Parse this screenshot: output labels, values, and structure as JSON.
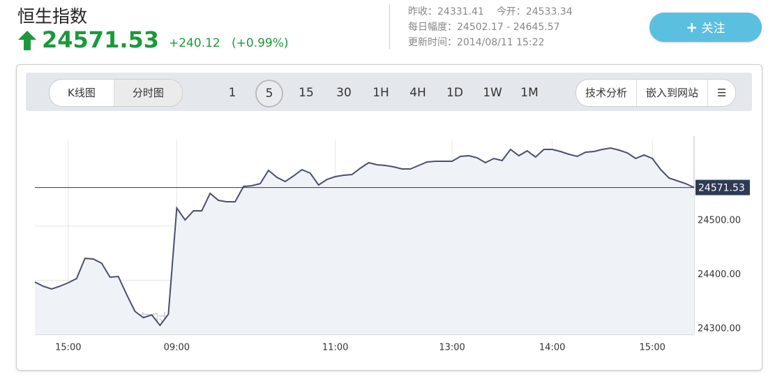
{
  "header": {
    "title": "恒生指数",
    "price": "24571.53",
    "change": "+240.12",
    "change_pct": "(+0.99%)",
    "stats": [
      [
        {
          "label": "昨收：",
          "value": "24331.41"
        },
        {
          "label": "今开：",
          "value": "24533.34"
        }
      ],
      [
        {
          "label": "每日幅度：",
          "value": "24502.17 - 24645.57"
        }
      ],
      [
        {
          "label": "更新时间：",
          "value": "2014/08/11 15:22"
        }
      ]
    ],
    "follow_button": "关注"
  },
  "toolbar": {
    "tabs": [
      "K线图",
      "分时图"
    ],
    "active_tab": 1,
    "intervals": [
      "1",
      "5",
      "15",
      "30",
      "1H",
      "4H",
      "1D",
      "1W",
      "1M"
    ],
    "active_interval": 1,
    "tools": [
      "技术分析",
      "嵌入到网站"
    ]
  },
  "chart_data": {
    "type": "line",
    "watermark": "华尔街见闻 · 实时行情",
    "categories": [
      null,
      null,
      null,
      null,
      "15:00",
      null,
      null,
      null,
      null,
      null,
      null,
      null,
      null,
      null,
      null,
      null,
      null,
      "09:00",
      null,
      null,
      null,
      null,
      null,
      null,
      null,
      null,
      null,
      null,
      null,
      null,
      null,
      null,
      null,
      null,
      null,
      null,
      "11:00",
      null,
      null,
      null,
      null,
      null,
      null,
      null,
      null,
      null,
      null,
      null,
      null,
      null,
      "13:00",
      null,
      null,
      null,
      null,
      null,
      null,
      null,
      null,
      null,
      null,
      null,
      "14:00",
      null,
      null,
      null,
      null,
      null,
      null,
      null,
      null,
      null,
      null,
      null,
      "15:00",
      null,
      null,
      null,
      null,
      null
    ],
    "series": [
      {
        "name": "恒生指数",
        "color": "#4a4e6c",
        "values": [
          24396.8,
          24389.0,
          24383.9,
          24389.0,
          24395.5,
          24403.2,
          24440.6,
          24439.4,
          24431.6,
          24405.8,
          24407.1,
          24373.5,
          24342.6,
          24331.0,
          24336.1,
          24316.8,
          24337.4,
          24533.5,
          24511.6,
          24528.4,
          24528.4,
          24560.6,
          24547.7,
          24545.2,
          24545.2,
          24573.5,
          24574.8,
          24578.7,
          24603.2,
          24590.3,
          24582.6,
          24592.9,
          24604.5,
          24598.1,
          24576.1,
          24586.5,
          24591.6,
          24594.2,
          24595.5,
          24607.1,
          24617.4,
          24613.5,
          24612.3,
          24609.7,
          24605.8,
          24605.8,
          24612.3,
          24618.7,
          24620.0,
          24620.0,
          24620.0,
          24629.0,
          24630.3,
          24626.5,
          24617.4,
          24625.2,
          24621.3,
          24641.9,
          24630.3,
          24639.4,
          24627.7,
          24641.9,
          24641.9,
          24638.1,
          24632.9,
          24629.0,
          24636.8,
          24638.1,
          24641.9,
          24644.5,
          24640.6,
          24635.5,
          24625.2,
          24631.6,
          24625.2,
          24604.5,
          24589.0,
          24583.9,
          24578.7,
          24571.53
        ]
      }
    ],
    "price_line": 24571.53,
    "ylim": [
      24300,
      24660
    ],
    "yticks": [
      {
        "value": 24300,
        "label": "24300.00"
      },
      {
        "value": 24400,
        "label": "24400.00"
      },
      {
        "value": 24500,
        "label": "24500.00"
      }
    ],
    "grid": true,
    "area_fill": "#eff2f7"
  }
}
